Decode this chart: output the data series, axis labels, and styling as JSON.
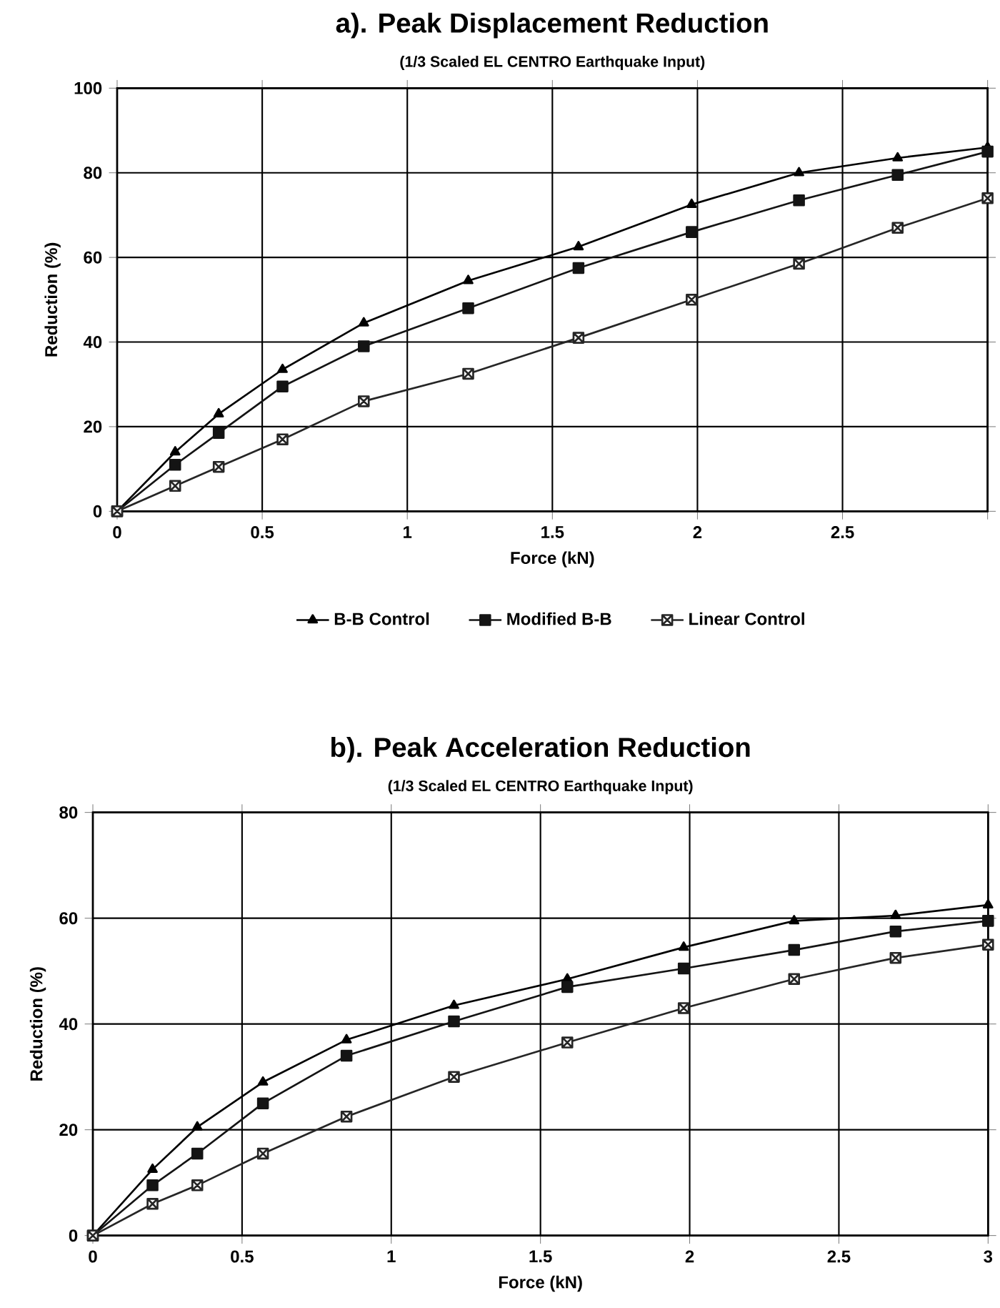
{
  "chart_data": [
    {
      "type": "line",
      "title": "a). Peak Displacement Reduction",
      "subtitle": "(1/3 Scaled EL CENTRO Earthquake Input)",
      "xlabel": "Force (kN)",
      "ylabel": "Reduction (%)",
      "x": [
        0,
        0.2,
        0.35,
        0.57,
        0.85,
        1.21,
        1.59,
        1.98,
        2.35,
        2.69,
        3.0
      ],
      "series": [
        {
          "name": "B-B Control",
          "color": "#000000",
          "marker": "triangle",
          "values": [
            0,
            14,
            23,
            33.5,
            44.5,
            54.5,
            62.5,
            72.5,
            80,
            83.5,
            86
          ]
        },
        {
          "name": "Modified B-B",
          "color": "#141414",
          "marker": "square",
          "values": [
            0,
            11,
            18.5,
            29.5,
            39,
            48,
            57.5,
            66,
            73.5,
            79.5,
            85
          ]
        },
        {
          "name": "Linear Control",
          "color": "#262626",
          "marker": "cross",
          "values": [
            0,
            6,
            10.5,
            17,
            26,
            32.5,
            41,
            50,
            58.5,
            67,
            74
          ]
        }
      ],
      "xlim": [
        0,
        3
      ],
      "xticks": [
        0,
        0.5,
        1,
        1.5,
        2,
        2.5,
        {
          "value": 3,
          "label": null
        }
      ],
      "ylim": [
        0,
        100
      ],
      "yticks": [
        0,
        20,
        40,
        60,
        80,
        100
      ],
      "grid": true,
      "legend": "bottom",
      "line_style": "solid"
    },
    {
      "type": "line",
      "title": "b). Peak Acceleration Reduction",
      "subtitle": "(1/3 Scaled EL CENTRO Earthquake Input)",
      "xlabel": "Force (kN)",
      "ylabel": "Reduction (%)",
      "x": [
        0,
        0.2,
        0.35,
        0.57,
        0.85,
        1.21,
        1.59,
        1.98,
        2.35,
        2.69,
        3.0
      ],
      "series": [
        {
          "color": "#000000",
          "marker": "triangle",
          "values": [
            0,
            12.5,
            20.5,
            29,
            37,
            43.5,
            48.5,
            54.5,
            59.5,
            60.5,
            62.5
          ]
        },
        {
          "color": "#141414",
          "marker": "square",
          "values": [
            0,
            9.5,
            15.5,
            25,
            34,
            40.5,
            47,
            50.5,
            54,
            57.5,
            59.5
          ]
        },
        {
          "color": "#262626",
          "marker": "cross",
          "values": [
            0,
            6,
            9.5,
            15.5,
            22.5,
            30,
            36.5,
            43,
            48.5,
            52.5,
            55
          ]
        }
      ],
      "xlim": [
        0,
        3
      ],
      "xticks": [
        0,
        0.5,
        1,
        1.5,
        2,
        2.5,
        3
      ],
      "ylim": [
        0,
        80
      ],
      "yticks": [
        0,
        20,
        40,
        60,
        80
      ],
      "grid": true,
      "legend": false,
      "line_style": "solid"
    }
  ]
}
